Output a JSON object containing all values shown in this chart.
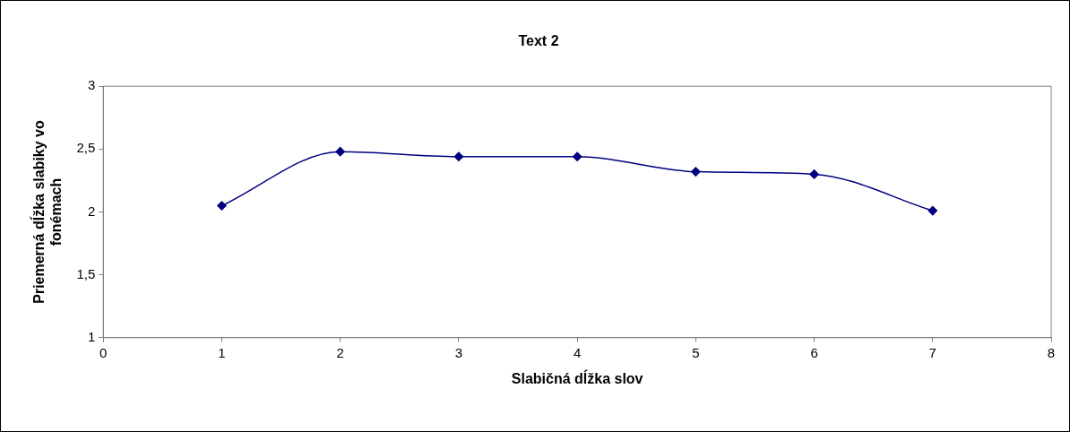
{
  "chart_data": {
    "type": "line",
    "title": "Text 2",
    "xlabel": "Slabičná dĺžka slov",
    "ylabel": "Priemerná dĺžka slabiky vo fonémach",
    "x": [
      1,
      2,
      3,
      4,
      5,
      6,
      7
    ],
    "series": [
      {
        "color": "#000080",
        "values": [
          2.05,
          2.48,
          2.44,
          2.44,
          2.32,
          2.3,
          2.01
        ]
      }
    ],
    "xlim": [
      0,
      8
    ],
    "xticks": [
      0,
      1,
      2,
      3,
      4,
      5,
      6,
      7,
      8
    ],
    "ylim": [
      1,
      3
    ],
    "yticks": [
      1,
      {
        "value": 1.5,
        "label": "1,5"
      },
      2,
      {
        "value": 2.5,
        "label": "2,5"
      },
      3
    ],
    "grid": false,
    "legend": false,
    "marker": "diamond",
    "line_style": "solid"
  }
}
